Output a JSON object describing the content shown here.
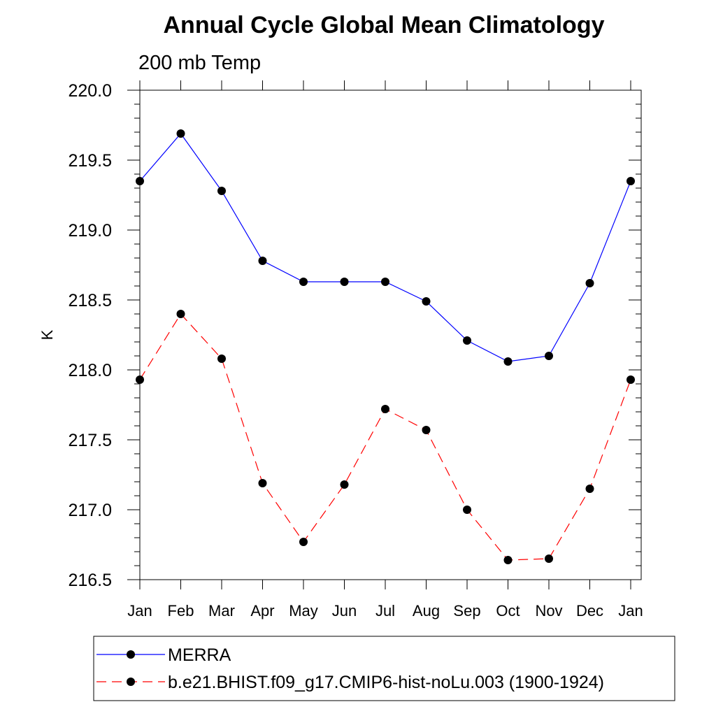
{
  "chart_data": {
    "type": "line",
    "title": "Annual Cycle Global Mean Climatology",
    "subtitle": "200 mb Temp",
    "xlabel": "",
    "ylabel": "K",
    "categories": [
      "Jan",
      "Feb",
      "Mar",
      "Apr",
      "May",
      "Jun",
      "Jul",
      "Aug",
      "Sep",
      "Oct",
      "Nov",
      "Dec",
      "Jan"
    ],
    "ylim": [
      216.5,
      220.0
    ],
    "yticks": [
      216.5,
      217.0,
      217.5,
      218.0,
      218.5,
      219.0,
      219.5,
      220.0
    ],
    "ytick_labels": [
      "216.5",
      "217.0",
      "217.5",
      "218.0",
      "218.5",
      "219.0",
      "219.5",
      "220.0"
    ],
    "grid": false,
    "legend_position": "bottom",
    "series": [
      {
        "name": "MERRA",
        "color": "#0000ff",
        "dash": "solid",
        "marker": "filled-circle",
        "values": [
          219.35,
          219.69,
          219.28,
          218.78,
          218.63,
          218.63,
          218.63,
          218.49,
          218.21,
          218.06,
          218.1,
          218.62,
          219.35
        ]
      },
      {
        "name": "b.e21.BHIST.f09_g17.CMIP6-hist-noLu.003 (1900-1924)",
        "color": "#ff0000",
        "dash": "dashed",
        "marker": "filled-circle",
        "values": [
          217.93,
          218.4,
          218.08,
          217.19,
          216.77,
          217.18,
          217.72,
          217.57,
          217.0,
          216.64,
          216.65,
          217.15,
          217.93
        ]
      }
    ]
  }
}
